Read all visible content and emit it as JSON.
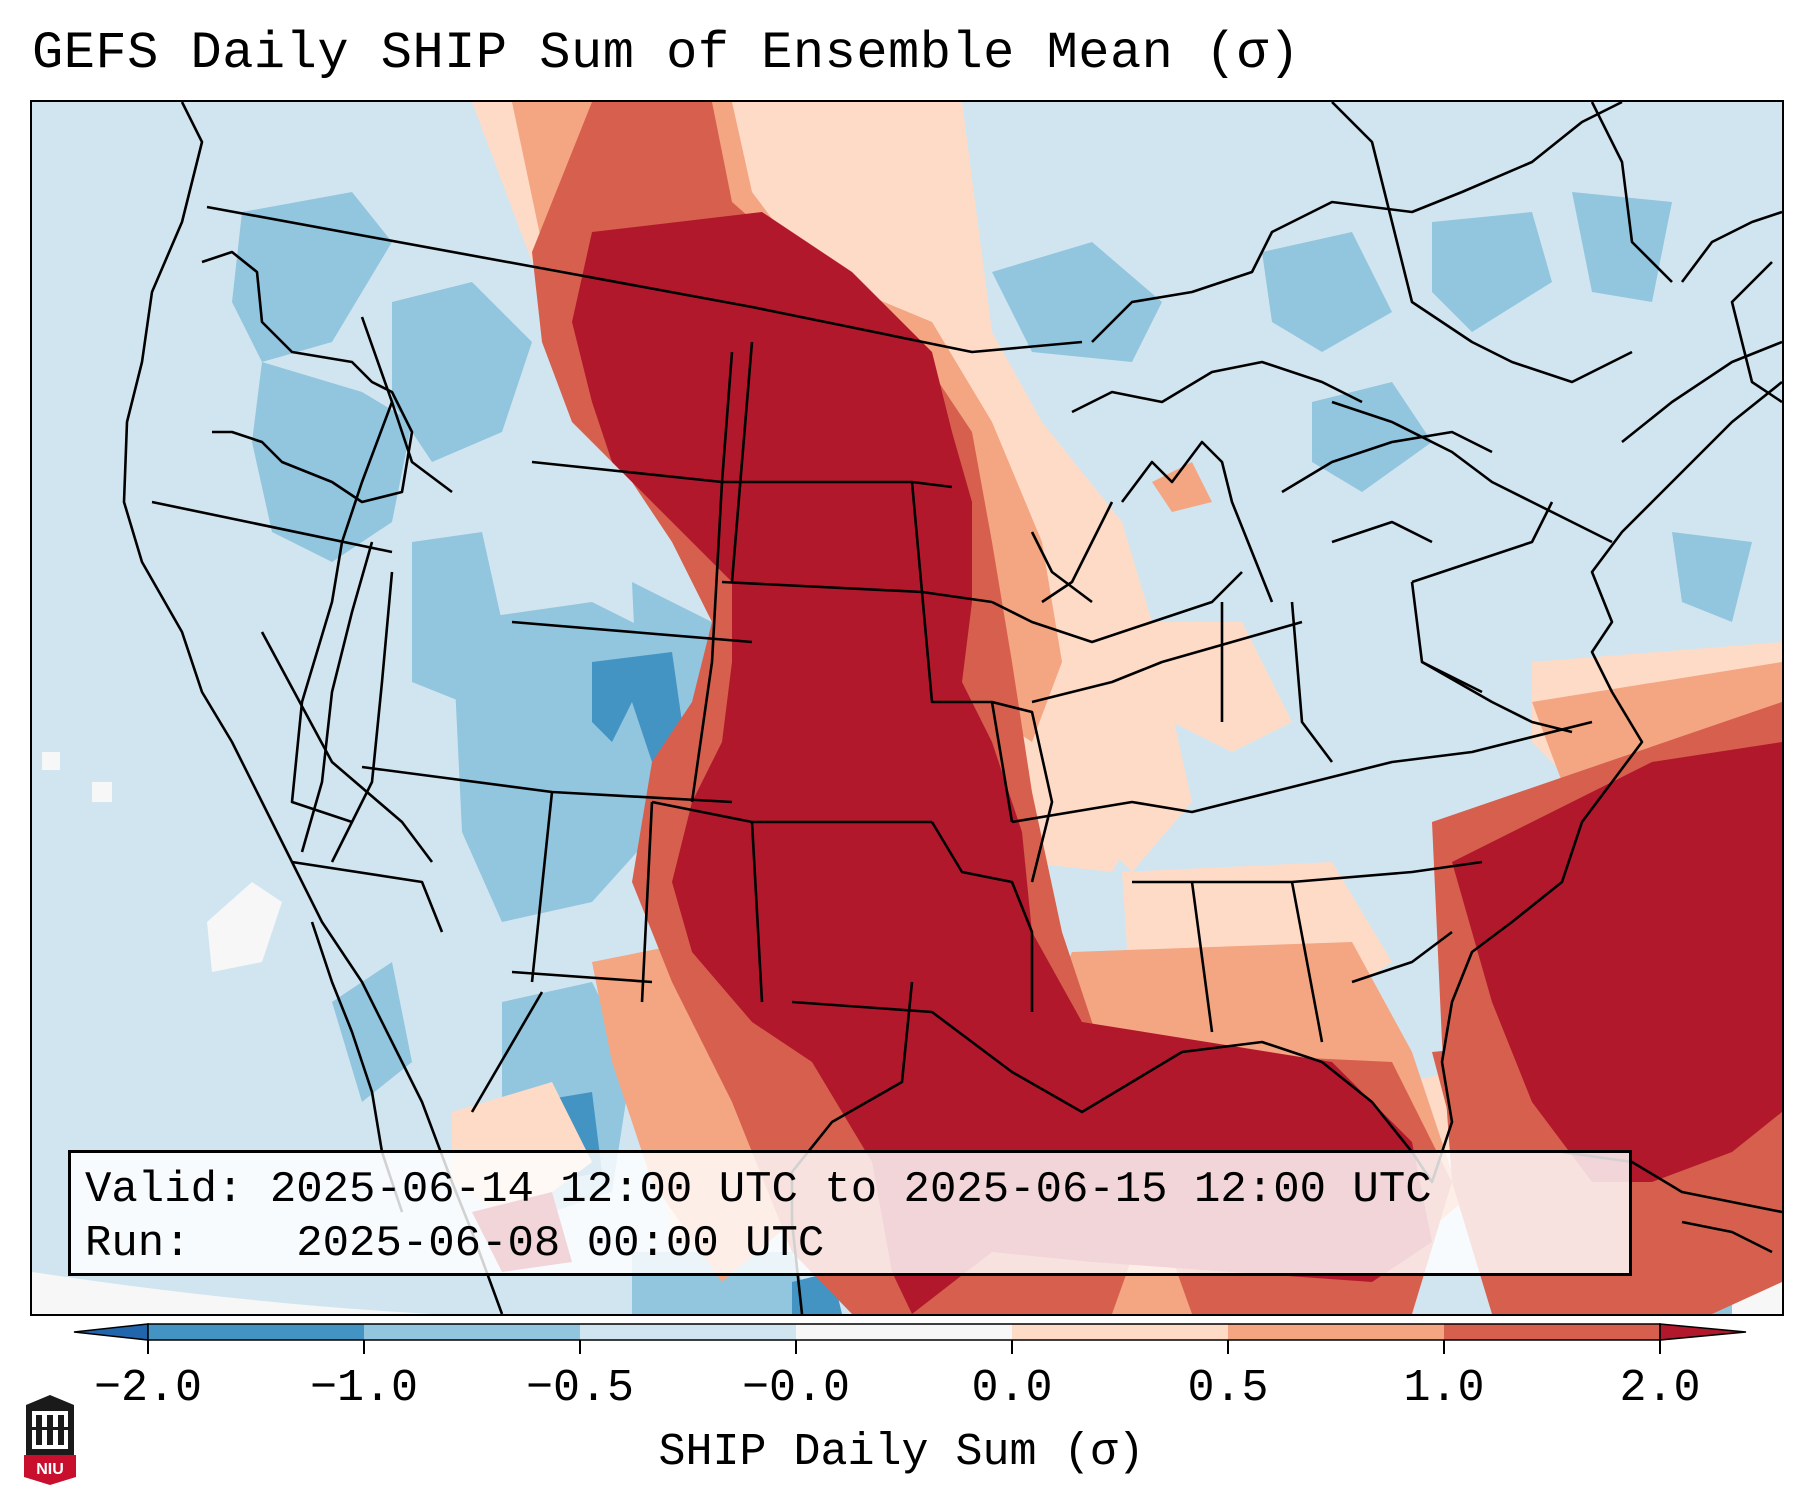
{
  "title": "GEFS Daily SHIP Sum of Ensemble Mean (σ)",
  "info": {
    "valid_label": "Valid:",
    "valid_value": "2025-06-14 12:00 UTC to 2025-06-15 12:00 UTC",
    "run_label": "Run:",
    "run_value": "2025-06-08 00:00 UTC"
  },
  "colorbar": {
    "label": "SHIP Daily Sum (σ)",
    "ticks": [
      "−2.0",
      "−1.0",
      "−0.5",
      "−0.0",
      "0.0",
      "0.5",
      "1.0",
      "2.0"
    ],
    "bins": [
      {
        "range": "< -2.0",
        "color": "#2166ac"
      },
      {
        "range": "-2.0 to -1.0",
        "color": "#4393c3"
      },
      {
        "range": "-1.0 to -0.5",
        "color": "#92c5de"
      },
      {
        "range": "-0.5 to -0.0",
        "color": "#d1e5f0"
      },
      {
        "range": "-0.0 to 0.0",
        "color": "#f7f7f7"
      },
      {
        "range": "0.0 to 0.5",
        "color": "#fddbc7"
      },
      {
        "range": "0.5 to 1.0",
        "color": "#f4a582"
      },
      {
        "range": "1.0 to 2.0",
        "color": "#d6604d"
      },
      {
        "range": "> 2.0",
        "color": "#b2182b"
      }
    ]
  },
  "logo": {
    "text": "NIU"
  }
}
